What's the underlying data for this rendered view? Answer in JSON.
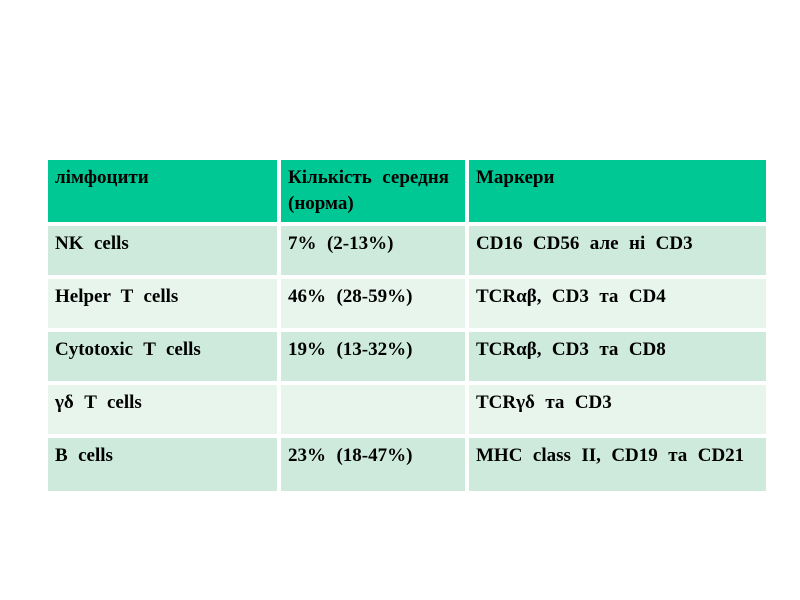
{
  "slide": {
    "kind": "presentation-slide",
    "background_color": "#ffffff"
  },
  "table": {
    "title_semantic": "lymphocyte-types-table",
    "headers": [
      "лімфоцити",
      "Кількість середня (норма)",
      "Маркери"
    ],
    "rows": [
      [
        "NK cells",
        "7% (2-13%)",
        "CD16 CD56 але ні CD3"
      ],
      [
        "Helper T cells",
        "46% (28-59%)",
        "TCRαβ, CD3 та CD4"
      ],
      [
        "Cytotoxic T cells",
        "19% (13-32%)",
        "TCRαβ, CD3 та CD8"
      ],
      [
        "γδ T cells",
        "",
        "TCRγδ та CD3"
      ],
      [
        "B cells",
        "23% (18-47%)",
        "MHC class II, CD19 та CD21"
      ]
    ],
    "colors": {
      "header_background": "#00c894",
      "row_band_dark": "#cdeadd",
      "row_band_light": "#e7f5ed",
      "separator": "#ffffff",
      "text": "#000000"
    }
  }
}
